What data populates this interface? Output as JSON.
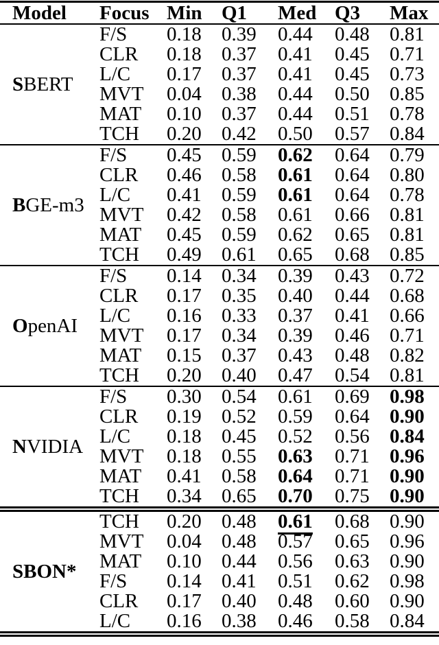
{
  "colors": {
    "text": "#000000",
    "background": "#ffffff",
    "rule": "#000000"
  },
  "table": {
    "headers": [
      "Model",
      "Focus",
      "Min",
      "Q1",
      "Med",
      "Q3",
      "Max"
    ],
    "column_keys": [
      "min",
      "q1",
      "med",
      "q3",
      "max"
    ],
    "sections": [
      {
        "id": "sbert",
        "separator_above": "single",
        "model_parts": [
          {
            "text": "S",
            "bold": true
          },
          {
            "text": "BERT",
            "bold": false
          }
        ],
        "rows": [
          {
            "focus": "F/S",
            "cells": [
              {
                "v": "0.18"
              },
              {
                "v": "0.39"
              },
              {
                "v": "0.44"
              },
              {
                "v": "0.48"
              },
              {
                "v": "0.81"
              }
            ]
          },
          {
            "focus": "CLR",
            "cells": [
              {
                "v": "0.18"
              },
              {
                "v": "0.37"
              },
              {
                "v": "0.41"
              },
              {
                "v": "0.45"
              },
              {
                "v": "0.71"
              }
            ]
          },
          {
            "focus": "L/C",
            "cells": [
              {
                "v": "0.17"
              },
              {
                "v": "0.37"
              },
              {
                "v": "0.41"
              },
              {
                "v": "0.45"
              },
              {
                "v": "0.73"
              }
            ]
          },
          {
            "focus": "MVT",
            "cells": [
              {
                "v": "0.04"
              },
              {
                "v": "0.38"
              },
              {
                "v": "0.44"
              },
              {
                "v": "0.50"
              },
              {
                "v": "0.85"
              }
            ]
          },
          {
            "focus": "MAT",
            "cells": [
              {
                "v": "0.10"
              },
              {
                "v": "0.37"
              },
              {
                "v": "0.44"
              },
              {
                "v": "0.51"
              },
              {
                "v": "0.78"
              }
            ]
          },
          {
            "focus": "TCH",
            "cells": [
              {
                "v": "0.20"
              },
              {
                "v": "0.42"
              },
              {
                "v": "0.50"
              },
              {
                "v": "0.57"
              },
              {
                "v": "0.84"
              }
            ]
          }
        ]
      },
      {
        "id": "bge-m3",
        "separator_above": "single",
        "model_parts": [
          {
            "text": "B",
            "bold": true
          },
          {
            "text": "GE-m3",
            "bold": false
          }
        ],
        "rows": [
          {
            "focus": "F/S",
            "cells": [
              {
                "v": "0.45"
              },
              {
                "v": "0.59"
              },
              {
                "v": "0.62",
                "b": true
              },
              {
                "v": "0.64"
              },
              {
                "v": "0.79"
              }
            ]
          },
          {
            "focus": "CLR",
            "cells": [
              {
                "v": "0.46"
              },
              {
                "v": "0.58"
              },
              {
                "v": "0.61",
                "b": true
              },
              {
                "v": "0.64"
              },
              {
                "v": "0.80"
              }
            ]
          },
          {
            "focus": "L/C",
            "cells": [
              {
                "v": "0.41"
              },
              {
                "v": "0.59"
              },
              {
                "v": "0.61",
                "b": true
              },
              {
                "v": "0.64"
              },
              {
                "v": "0.78"
              }
            ]
          },
          {
            "focus": "MVT",
            "cells": [
              {
                "v": "0.42"
              },
              {
                "v": "0.58"
              },
              {
                "v": "0.61"
              },
              {
                "v": "0.66"
              },
              {
                "v": "0.81"
              }
            ]
          },
          {
            "focus": "MAT",
            "cells": [
              {
                "v": "0.45"
              },
              {
                "v": "0.59"
              },
              {
                "v": "0.62"
              },
              {
                "v": "0.65"
              },
              {
                "v": "0.81"
              }
            ]
          },
          {
            "focus": "TCH",
            "cells": [
              {
                "v": "0.49"
              },
              {
                "v": "0.61"
              },
              {
                "v": "0.65"
              },
              {
                "v": "0.68"
              },
              {
                "v": "0.85"
              }
            ]
          }
        ]
      },
      {
        "id": "openai",
        "separator_above": "single",
        "model_parts": [
          {
            "text": "O",
            "bold": true
          },
          {
            "text": "penAI",
            "bold": false
          }
        ],
        "rows": [
          {
            "focus": "F/S",
            "cells": [
              {
                "v": "0.14"
              },
              {
                "v": "0.34"
              },
              {
                "v": "0.39"
              },
              {
                "v": "0.43"
              },
              {
                "v": "0.72"
              }
            ]
          },
          {
            "focus": "CLR",
            "cells": [
              {
                "v": "0.17"
              },
              {
                "v": "0.35"
              },
              {
                "v": "0.40"
              },
              {
                "v": "0.44"
              },
              {
                "v": "0.68"
              }
            ]
          },
          {
            "focus": "L/C",
            "cells": [
              {
                "v": "0.16"
              },
              {
                "v": "0.33"
              },
              {
                "v": "0.37"
              },
              {
                "v": "0.41"
              },
              {
                "v": "0.66"
              }
            ]
          },
          {
            "focus": "MVT",
            "cells": [
              {
                "v": "0.17"
              },
              {
                "v": "0.34"
              },
              {
                "v": "0.39"
              },
              {
                "v": "0.46"
              },
              {
                "v": "0.71"
              }
            ]
          },
          {
            "focus": "MAT",
            "cells": [
              {
                "v": "0.15"
              },
              {
                "v": "0.37"
              },
              {
                "v": "0.43"
              },
              {
                "v": "0.48"
              },
              {
                "v": "0.82"
              }
            ]
          },
          {
            "focus": "TCH",
            "cells": [
              {
                "v": "0.20"
              },
              {
                "v": "0.40"
              },
              {
                "v": "0.47"
              },
              {
                "v": "0.54"
              },
              {
                "v": "0.81"
              }
            ]
          }
        ]
      },
      {
        "id": "nvidia",
        "separator_above": "single",
        "model_parts": [
          {
            "text": "N",
            "bold": true
          },
          {
            "text": "VIDIA",
            "bold": false
          }
        ],
        "rows": [
          {
            "focus": "F/S",
            "cells": [
              {
                "v": "0.30"
              },
              {
                "v": "0.54"
              },
              {
                "v": "0.61"
              },
              {
                "v": "0.69"
              },
              {
                "v": "0.98",
                "b": true
              }
            ]
          },
          {
            "focus": "CLR",
            "cells": [
              {
                "v": "0.19"
              },
              {
                "v": "0.52"
              },
              {
                "v": "0.59"
              },
              {
                "v": "0.64"
              },
              {
                "v": "0.90",
                "b": true
              }
            ]
          },
          {
            "focus": "L/C",
            "cells": [
              {
                "v": "0.18"
              },
              {
                "v": "0.45"
              },
              {
                "v": "0.52"
              },
              {
                "v": "0.56"
              },
              {
                "v": "0.84",
                "b": true
              }
            ]
          },
          {
            "focus": "MVT",
            "cells": [
              {
                "v": "0.18"
              },
              {
                "v": "0.55"
              },
              {
                "v": "0.63",
                "b": true
              },
              {
                "v": "0.71"
              },
              {
                "v": "0.96",
                "b": true
              }
            ]
          },
          {
            "focus": "MAT",
            "cells": [
              {
                "v": "0.41"
              },
              {
                "v": "0.58"
              },
              {
                "v": "0.64",
                "b": true
              },
              {
                "v": "0.71"
              },
              {
                "v": "0.90",
                "b": true
              }
            ]
          },
          {
            "focus": "TCH",
            "cells": [
              {
                "v": "0.34"
              },
              {
                "v": "0.65"
              },
              {
                "v": "0.70",
                "b": true
              },
              {
                "v": "0.75"
              },
              {
                "v": "0.90",
                "b": true
              }
            ]
          }
        ]
      },
      {
        "id": "sbon",
        "separator_above": "double",
        "model_parts": [
          {
            "text": "SBON*",
            "bold": true
          }
        ],
        "rows": [
          {
            "focus": "TCH",
            "cells": [
              {
                "v": "0.20"
              },
              {
                "v": "0.48"
              },
              {
                "v": "0.61",
                "b": true,
                "u": true
              },
              {
                "v": "0.68"
              },
              {
                "v": "0.90"
              }
            ]
          },
          {
            "focus": "MVT",
            "cells": [
              {
                "v": "0.04"
              },
              {
                "v": "0.48"
              },
              {
                "v": "0.57"
              },
              {
                "v": "0.65"
              },
              {
                "v": "0.96"
              }
            ]
          },
          {
            "focus": "MAT",
            "cells": [
              {
                "v": "0.10"
              },
              {
                "v": "0.44"
              },
              {
                "v": "0.56"
              },
              {
                "v": "0.63"
              },
              {
                "v": "0.90"
              }
            ]
          },
          {
            "focus": "F/S",
            "cells": [
              {
                "v": "0.14"
              },
              {
                "v": "0.41"
              },
              {
                "v": "0.51"
              },
              {
                "v": "0.62"
              },
              {
                "v": "0.98"
              }
            ]
          },
          {
            "focus": "CLR",
            "cells": [
              {
                "v": "0.17"
              },
              {
                "v": "0.40"
              },
              {
                "v": "0.48"
              },
              {
                "v": "0.60"
              },
              {
                "v": "0.90"
              }
            ]
          },
          {
            "focus": "L/C",
            "cells": [
              {
                "v": "0.16"
              },
              {
                "v": "0.38"
              },
              {
                "v": "0.46"
              },
              {
                "v": "0.58"
              },
              {
                "v": "0.84"
              }
            ]
          }
        ]
      }
    ]
  }
}
